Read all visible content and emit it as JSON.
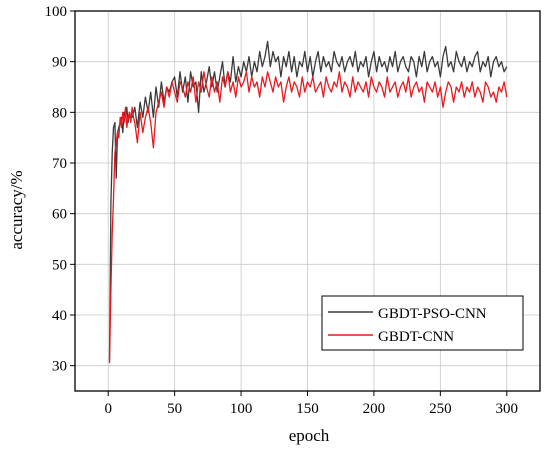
{
  "chart_data": {
    "type": "line",
    "xlabel": "epoch",
    "ylabel": "accuracy/%",
    "xlim": [
      -25,
      325
    ],
    "ylim": [
      25,
      100
    ],
    "xticks": [
      0,
      50,
      100,
      150,
      200,
      250,
      300
    ],
    "yticks": [
      30,
      40,
      50,
      60,
      70,
      80,
      90,
      100
    ],
    "grid": true,
    "legend_position": "bottom-right",
    "series": [
      {
        "name": "GBDT-PSO-CNN",
        "color": "#3a3a3a",
        "x": [
          1,
          2,
          3,
          4,
          5,
          6,
          7,
          8,
          9,
          10,
          11,
          12,
          13,
          14,
          15,
          16,
          17,
          18,
          19,
          20,
          22,
          24,
          26,
          28,
          30,
          32,
          34,
          36,
          38,
          40,
          42,
          44,
          46,
          48,
          50,
          52,
          54,
          56,
          58,
          60,
          62,
          64,
          66,
          68,
          70,
          72,
          74,
          76,
          78,
          80,
          82,
          84,
          86,
          88,
          90,
          92,
          94,
          96,
          98,
          100,
          102,
          104,
          106,
          108,
          110,
          112,
          114,
          116,
          118,
          120,
          122,
          124,
          126,
          128,
          130,
          132,
          134,
          136,
          138,
          140,
          142,
          144,
          146,
          148,
          150,
          152,
          154,
          156,
          158,
          160,
          162,
          164,
          166,
          168,
          170,
          172,
          174,
          176,
          178,
          180,
          182,
          184,
          186,
          188,
          190,
          192,
          194,
          196,
          198,
          200,
          202,
          204,
          206,
          208,
          210,
          212,
          214,
          216,
          218,
          220,
          222,
          224,
          226,
          228,
          230,
          232,
          234,
          236,
          238,
          240,
          242,
          244,
          246,
          248,
          250,
          252,
          254,
          256,
          258,
          260,
          262,
          264,
          266,
          268,
          270,
          272,
          274,
          276,
          278,
          280,
          282,
          284,
          286,
          288,
          290,
          292,
          294,
          296,
          298,
          300
        ],
        "values": [
          31,
          62,
          72,
          77,
          78,
          67,
          76,
          77,
          78,
          79,
          76,
          80,
          79,
          81,
          78,
          80,
          79,
          79,
          80,
          81,
          77,
          82,
          79,
          83,
          80,
          84,
          79,
          85,
          81,
          86,
          82,
          85,
          84,
          86,
          87,
          83,
          88,
          84,
          87,
          82,
          88,
          85,
          86,
          80,
          88,
          84,
          86,
          89,
          85,
          88,
          84,
          87,
          90,
          85,
          88,
          86,
          91,
          86,
          89,
          87,
          90,
          88,
          91,
          87,
          90,
          88,
          92,
          89,
          91,
          94,
          89,
          92,
          90,
          91,
          87,
          91,
          89,
          92,
          88,
          91,
          87,
          90,
          89,
          92,
          88,
          91,
          87,
          90,
          92,
          88,
          91,
          89,
          90,
          88,
          92,
          90,
          89,
          91,
          88,
          90,
          91,
          89,
          92,
          88,
          90,
          89,
          91,
          87,
          90,
          92,
          88,
          91,
          89,
          90,
          88,
          91,
          89,
          92,
          88,
          90,
          91,
          89,
          88,
          91,
          90,
          87,
          91,
          89,
          92,
          88,
          90,
          91,
          89,
          90,
          87,
          91,
          93,
          89,
          90,
          88,
          92,
          90,
          89,
          91,
          88,
          90,
          89,
          91,
          92,
          88,
          90,
          89,
          91,
          87,
          90,
          91,
          89,
          90,
          88,
          89
        ]
      },
      {
        "name": "GBDT-CNN",
        "color": "#e8191f",
        "x": [
          1,
          2,
          3,
          4,
          5,
          6,
          7,
          8,
          9,
          10,
          11,
          12,
          13,
          14,
          15,
          16,
          17,
          18,
          19,
          20,
          22,
          24,
          26,
          28,
          30,
          32,
          34,
          36,
          38,
          40,
          42,
          44,
          46,
          48,
          50,
          52,
          54,
          56,
          58,
          60,
          62,
          64,
          66,
          68,
          70,
          72,
          74,
          76,
          78,
          80,
          82,
          84,
          86,
          88,
          90,
          92,
          94,
          96,
          98,
          100,
          102,
          104,
          106,
          108,
          110,
          112,
          114,
          116,
          118,
          120,
          122,
          124,
          126,
          128,
          130,
          132,
          134,
          136,
          138,
          140,
          142,
          144,
          146,
          148,
          150,
          152,
          154,
          156,
          158,
          160,
          162,
          164,
          166,
          168,
          170,
          172,
          174,
          176,
          178,
          180,
          182,
          184,
          186,
          188,
          190,
          192,
          194,
          196,
          198,
          200,
          202,
          204,
          206,
          208,
          210,
          212,
          214,
          216,
          218,
          220,
          222,
          224,
          226,
          228,
          230,
          232,
          234,
          236,
          238,
          240,
          242,
          244,
          246,
          248,
          250,
          252,
          254,
          256,
          258,
          260,
          262,
          264,
          266,
          268,
          270,
          272,
          274,
          276,
          278,
          280,
          282,
          284,
          286,
          288,
          290,
          292,
          294,
          296,
          298,
          300
        ],
        "values": [
          30.5,
          45,
          56,
          63,
          72,
          74,
          76,
          75,
          79,
          77,
          80,
          78,
          81,
          77,
          79,
          80,
          78,
          81,
          79,
          78,
          74,
          80,
          76,
          79,
          81,
          78,
          73,
          80,
          82,
          84,
          81,
          85,
          83,
          86,
          84,
          82,
          86,
          85,
          83,
          86,
          84,
          87,
          82,
          86,
          84,
          88,
          85,
          83,
          87,
          84,
          86,
          82,
          87,
          85,
          88,
          84,
          86,
          83,
          87,
          85,
          86,
          88,
          84,
          87,
          85,
          86,
          83,
          87,
          85,
          88,
          86,
          84,
          87,
          85,
          86,
          82,
          85,
          87,
          84,
          86,
          85,
          83,
          87,
          84,
          86,
          85,
          87,
          84,
          85,
          86,
          83,
          87,
          85,
          84,
          86,
          85,
          88,
          84,
          86,
          85,
          83,
          87,
          84,
          86,
          85,
          84,
          86,
          83,
          87,
          85,
          84,
          86,
          85,
          83,
          87,
          84,
          85,
          86,
          83,
          85,
          86,
          84,
          87,
          83,
          85,
          86,
          84,
          85,
          82,
          86,
          85,
          84,
          86,
          83,
          85,
          81,
          84,
          86,
          85,
          82,
          85,
          84,
          86,
          83,
          85,
          84,
          86,
          83,
          85,
          84,
          82,
          86,
          85,
          83,
          84,
          82,
          85,
          84,
          86,
          83
        ]
      }
    ]
  }
}
